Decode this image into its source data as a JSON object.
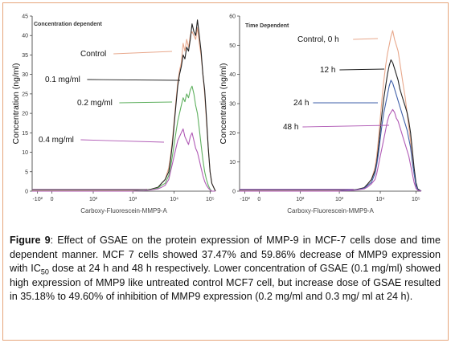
{
  "figure": {
    "caption_label": "Figure 9",
    "caption_part1": ": Effect of GSAE on the protein expression of MMP-9 in MCF-7 cells dose and time dependent manner. MCF 7 cells showed 37.47% and 59.86% decrease of MMP9 expression with IC",
    "caption_sub": "50",
    "caption_part2": " dose at 24 h and 48 h respectively. Lower concentration of GSAE (0.1 mg/ml) showed high expression of MMP9 like untreated control MCF7 cell, but increase dose of GSAE resulted in 35.18% to 49.60% of inhibition of MMP9 expression (0.2 mg/ml and 0.3 mg/ ml at 24 h)."
  },
  "chart_data": [
    {
      "type": "line",
      "title": "Concentration dependent",
      "xlabel": "Carboxy-Fluorescein-MMP9-A",
      "ylabel": "Concentration (ng/ml)",
      "ylim": [
        0,
        45
      ],
      "yticks": [
        "0",
        "5",
        "10",
        "15",
        "20",
        "25",
        "30",
        "35",
        "40",
        "45"
      ],
      "xticks": [
        "-10²",
        "0",
        "10²",
        "10³",
        "10⁴",
        "10⁵"
      ],
      "x": [
        0,
        0.3,
        0.6,
        0.8,
        1.0,
        1.3,
        1.6,
        1.9,
        2.2,
        2.5,
        2.8,
        3.1,
        3.3,
        3.5,
        3.6,
        3.7,
        3.8,
        3.85,
        3.9,
        3.95,
        4.0,
        4.05,
        4.1,
        4.15,
        4.2,
        4.25,
        4.3,
        4.35,
        4.4,
        4.45,
        4.5,
        4.55,
        4.6,
        4.65,
        4.7,
        4.75,
        4.8,
        4.85,
        4.9,
        4.95,
        5.0,
        5.1
      ],
      "series": [
        {
          "name": "Control",
          "color": "#e8a88c",
          "values": [
            0,
            0,
            0,
            0,
            0,
            0,
            0,
            0,
            0,
            0,
            0,
            0.2,
            0.5,
            1,
            2,
            3,
            6,
            9,
            13,
            18,
            23,
            28,
            31,
            33,
            38,
            36,
            39,
            37,
            40,
            41,
            40,
            39,
            42,
            38,
            35,
            30,
            25,
            18,
            11,
            5,
            2,
            0
          ]
        },
        {
          "name": "0.1 mg/ml",
          "color": "#222222",
          "values": [
            0,
            0,
            0,
            0,
            0,
            0,
            0,
            0,
            0,
            0,
            0,
            0.2,
            0.5,
            1,
            2,
            3,
            5,
            8,
            12,
            17,
            22,
            27,
            30,
            32,
            35,
            34,
            37,
            36,
            39,
            43,
            41,
            40,
            44,
            40,
            36,
            30,
            26,
            19,
            11,
            5,
            2,
            0
          ]
        },
        {
          "name": "0.2 mg/ml",
          "color": "#5fb05f",
          "values": [
            0,
            0,
            0,
            0,
            0,
            0,
            0,
            0,
            0,
            0,
            0,
            0.2,
            0.4,
            0.8,
            1.5,
            2,
            4,
            6,
            9,
            12,
            15,
            18,
            20,
            22,
            24,
            23,
            25,
            24,
            26,
            27,
            25,
            22,
            20,
            16,
            12,
            8,
            5,
            3,
            1.5,
            0.5,
            0,
            0
          ]
        },
        {
          "name": "0.4 mg/ml",
          "color": "#b05ab5",
          "values": [
            0,
            0,
            0,
            0,
            0,
            0,
            0,
            0,
            0,
            0,
            0,
            0.1,
            0.3,
            0.6,
            1,
            1.5,
            3,
            5,
            7,
            9,
            11,
            13,
            14,
            15,
            16,
            14,
            13,
            12,
            14,
            15,
            13,
            11,
            10,
            8,
            6,
            4,
            2.5,
            1.5,
            0.8,
            0.3,
            0,
            0
          ]
        }
      ]
    },
    {
      "type": "line",
      "title": "Time Dependent",
      "xlabel": "Carboxy-Fluorescein-MMP9-A",
      "ylabel": "Concentration (ng/ml)",
      "ylim": [
        0,
        60
      ],
      "yticks": [
        "0",
        "10",
        "20",
        "30",
        "40",
        "50",
        "60"
      ],
      "xticks": [
        "-10²",
        "0",
        "10²",
        "10³",
        "10⁴",
        "10⁵"
      ],
      "x": [
        0,
        0.3,
        0.6,
        0.8,
        1.0,
        1.3,
        1.6,
        1.9,
        2.2,
        2.5,
        2.8,
        3.1,
        3.3,
        3.5,
        3.6,
        3.7,
        3.8,
        3.85,
        3.9,
        3.95,
        4.0,
        4.05,
        4.1,
        4.15,
        4.2,
        4.25,
        4.3,
        4.35,
        4.4,
        4.45,
        4.5,
        4.55,
        4.6,
        4.65,
        4.7,
        4.75,
        4.8,
        4.85,
        4.9,
        4.95,
        5.0,
        5.1
      ],
      "series": [
        {
          "name": "Control, 0 h",
          "color": "#e8a88c",
          "values": [
            0,
            0,
            0,
            0,
            0,
            0,
            0,
            0,
            0,
            0,
            0,
            0.3,
            0.6,
            1.2,
            2.5,
            4,
            8,
            12,
            18,
            25,
            32,
            38,
            43,
            47,
            50,
            53,
            55,
            52,
            50,
            48,
            44,
            40,
            36,
            32,
            27,
            22,
            17,
            11,
            6,
            2,
            0.5,
            0
          ]
        },
        {
          "name": "12 h",
          "color": "#222222",
          "values": [
            0,
            0,
            0,
            0,
            0,
            0,
            0,
            0,
            0,
            0,
            0,
            0.3,
            0.6,
            1.2,
            2.5,
            4,
            7,
            10,
            15,
            21,
            27,
            32,
            36,
            40,
            43,
            45,
            44,
            42,
            40,
            38,
            35,
            33,
            31,
            29,
            27,
            24,
            20,
            14,
            8,
            3,
            0.8,
            0
          ]
        },
        {
          "name": "24 h",
          "color": "#3f5fa8",
          "values": [
            0,
            0,
            0,
            0,
            0,
            0,
            0,
            0,
            0,
            0,
            0,
            0.3,
            0.5,
            1,
            2,
            3,
            6,
            9,
            13,
            18,
            23,
            27,
            30,
            33,
            36,
            38,
            37,
            35,
            33,
            31,
            29,
            27,
            25,
            23,
            21,
            18,
            15,
            10,
            6,
            2,
            0.5,
            0
          ]
        },
        {
          "name": "48 h",
          "color": "#b05ab5",
          "values": [
            0,
            0,
            0,
            0,
            0,
            0,
            0,
            0,
            0,
            0,
            0,
            0.2,
            0.4,
            0.8,
            1.5,
            2.5,
            4,
            6,
            9,
            12,
            15,
            18,
            21,
            24,
            26,
            27,
            28,
            27,
            25,
            24,
            22,
            20,
            18,
            16,
            14,
            12,
            9,
            6,
            3,
            1,
            0.3,
            0
          ]
        }
      ]
    }
  ]
}
